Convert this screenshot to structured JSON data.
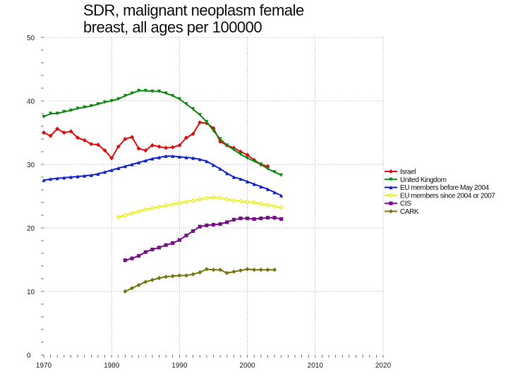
{
  "chart_data": {
    "type": "line",
    "title_line1": "SDR, malignant neoplasm female",
    "title_line2": "breast, all ages per 100000",
    "xlabel": "",
    "ylabel": "",
    "xlim": [
      1970,
      2020
    ],
    "ylim": [
      0,
      50
    ],
    "xticks": [
      "1970",
      "1980",
      "1990",
      "2000",
      "2010",
      "2020"
    ],
    "yticks": [
      "0",
      "10",
      "20",
      "30",
      "40",
      "50"
    ],
    "grid": true,
    "legend_position": "right",
    "series": [
      {
        "name": "Israel",
        "color": "#dd1111",
        "marker": "diamond",
        "x": [
          1970,
          1971,
          1972,
          1973,
          1974,
          1975,
          1976,
          1977,
          1978,
          1979,
          1980,
          1981,
          1982,
          1983,
          1984,
          1985,
          1986,
          1987,
          1988,
          1989,
          1990,
          1991,
          1992,
          1993,
          1994,
          1995,
          1996,
          1997,
          1998,
          1999,
          2000,
          2001,
          2002,
          2003
        ],
        "y": [
          35.0,
          34.5,
          35.6,
          35.0,
          35.2,
          34.2,
          33.8,
          33.2,
          33.1,
          32.2,
          31.0,
          32.8,
          34.0,
          34.3,
          32.5,
          32.2,
          33.0,
          32.8,
          32.6,
          32.7,
          33.0,
          34.2,
          34.8,
          36.6,
          36.5,
          35.7,
          33.6,
          33.0,
          32.6,
          32.0,
          31.5,
          30.7,
          30.0,
          29.7
        ]
      },
      {
        "name": "United Kingdom",
        "color": "#118811",
        "marker": "triangle-down",
        "x": [
          1970,
          1971,
          1972,
          1973,
          1974,
          1975,
          1976,
          1977,
          1978,
          1979,
          1980,
          1981,
          1982,
          1983,
          1984,
          1985,
          1986,
          1987,
          1988,
          1989,
          1990,
          1991,
          1992,
          1993,
          1994,
          1995,
          1996,
          1997,
          1998,
          1999,
          2000,
          2001,
          2002,
          2003,
          2004,
          2005
        ],
        "y": [
          37.5,
          38.0,
          38.0,
          38.3,
          38.5,
          38.8,
          39.0,
          39.2,
          39.5,
          39.8,
          40.0,
          40.3,
          40.8,
          41.2,
          41.6,
          41.6,
          41.5,
          41.5,
          41.2,
          40.8,
          40.3,
          39.5,
          38.7,
          37.8,
          36.7,
          35.3,
          34.0,
          33.0,
          32.3,
          31.6,
          31.0,
          30.5,
          30.0,
          29.3,
          28.8,
          28.3
        ]
      },
      {
        "name": "EU members before May 2004",
        "color": "#1122cc",
        "marker": "triangle-up",
        "x": [
          1970,
          1971,
          1972,
          1973,
          1974,
          1975,
          1976,
          1977,
          1978,
          1979,
          1980,
          1981,
          1982,
          1983,
          1984,
          1985,
          1986,
          1987,
          1988,
          1989,
          1990,
          1991,
          1992,
          1993,
          1994,
          1995,
          1996,
          1997,
          1998,
          1999,
          2000,
          2001,
          2002,
          2003,
          2004,
          2005
        ],
        "y": [
          27.5,
          27.7,
          27.8,
          27.9,
          28.0,
          28.1,
          28.2,
          28.3,
          28.5,
          28.8,
          29.1,
          29.4,
          29.7,
          30.0,
          30.3,
          30.6,
          30.9,
          31.1,
          31.3,
          31.3,
          31.2,
          31.1,
          31.0,
          30.8,
          30.5,
          29.9,
          29.3,
          28.6,
          28.0,
          27.7,
          27.3,
          26.9,
          26.5,
          26.1,
          25.6,
          25.1
        ]
      },
      {
        "name": "EU members since 2004 or 2007",
        "color": "#eeee00",
        "marker": "diamond-open",
        "x": [
          1981,
          1982,
          1983,
          1984,
          1985,
          1986,
          1987,
          1988,
          1989,
          1990,
          1991,
          1992,
          1993,
          1994,
          1995,
          1996,
          1997,
          1998,
          1999,
          2000,
          2001,
          2002,
          2003,
          2004,
          2005
        ],
        "y": [
          21.7,
          22.0,
          22.3,
          22.6,
          22.9,
          23.1,
          23.3,
          23.5,
          23.7,
          23.9,
          24.1,
          24.3,
          24.5,
          24.7,
          24.8,
          24.7,
          24.5,
          24.3,
          24.2,
          24.1,
          24.0,
          23.8,
          23.6,
          23.4,
          23.2
        ]
      },
      {
        "name": "CIS",
        "color": "#771188",
        "marker": "square",
        "x": [
          1982,
          1983,
          1984,
          1985,
          1986,
          1987,
          1988,
          1989,
          1990,
          1991,
          1992,
          1993,
          1994,
          1995,
          1996,
          1997,
          1998,
          1999,
          2000,
          2001,
          2002,
          2003,
          2004,
          2005
        ],
        "y": [
          14.9,
          15.2,
          15.6,
          16.2,
          16.6,
          16.9,
          17.3,
          17.6,
          18.1,
          18.8,
          19.5,
          20.2,
          20.4,
          20.5,
          20.6,
          20.9,
          21.3,
          21.5,
          21.5,
          21.4,
          21.5,
          21.6,
          21.6,
          21.4
        ]
      },
      {
        "name": "CARK",
        "color": "#777711",
        "marker": "diamond",
        "x": [
          1982,
          1983,
          1984,
          1985,
          1986,
          1987,
          1988,
          1989,
          1990,
          1991,
          1992,
          1993,
          1994,
          1995,
          1996,
          1997,
          1998,
          1999,
          2000,
          2001,
          2002,
          2003,
          2004
        ],
        "y": [
          10.0,
          10.5,
          11.0,
          11.5,
          11.8,
          12.1,
          12.3,
          12.4,
          12.5,
          12.5,
          12.7,
          13.0,
          13.5,
          13.4,
          13.4,
          12.9,
          13.1,
          13.3,
          13.5,
          13.4,
          13.4,
          13.4,
          13.4
        ]
      }
    ]
  }
}
